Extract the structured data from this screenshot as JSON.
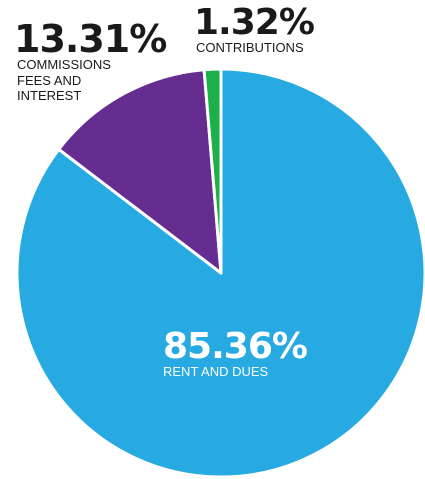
{
  "chart_data": {
    "type": "pie",
    "start_angle_deg": 0,
    "direction": "clockwise",
    "slices": [
      {
        "label": "RENT AND DUES",
        "value": 85.36,
        "value_label": "85.36%",
        "color": "#27a9e1"
      },
      {
        "label": "COMMISSIONS\nFEES AND\nINTEREST",
        "value": 13.31,
        "value_label": "13.31%",
        "color": "#662d91"
      },
      {
        "label": "CONTRIBUTIONS",
        "value": 1.32,
        "value_label": "1.32%",
        "color": "#1cb04a"
      }
    ]
  }
}
